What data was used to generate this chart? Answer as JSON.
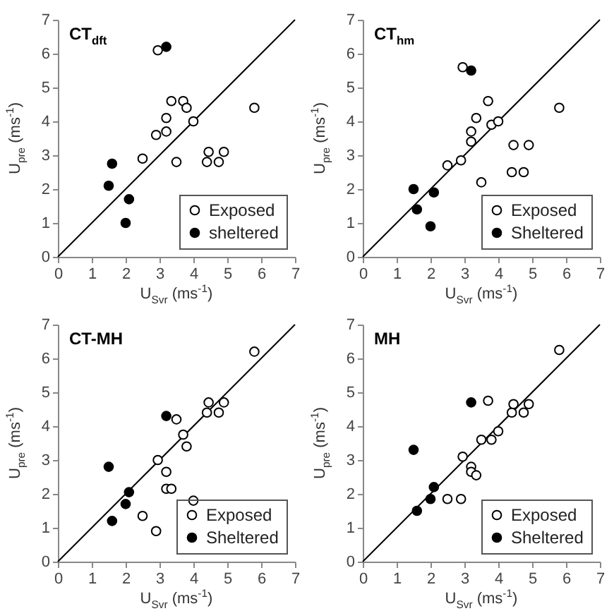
{
  "chart_data": [
    {
      "type": "scatter",
      "title": "CT$_{dft}$",
      "xlabel": "U$_{Svr}$ (ms$^{-1}$)",
      "ylabel": "U$_{pre}$ (ms$^{-1}$)",
      "xlim": [
        0,
        7
      ],
      "ylim": [
        0,
        7
      ],
      "xticks": [
        0,
        1,
        2,
        3,
        4,
        5,
        6,
        7
      ],
      "yticks": [
        0,
        1,
        2,
        3,
        4,
        5,
        6,
        7
      ],
      "marker": "circle",
      "legend": "bottom right",
      "series": [
        {
          "type": "line",
          "color": "#000000",
          "marker": "none",
          "x": [
            0,
            7
          ],
          "values": [
            0,
            7
          ]
        },
        {
          "name": "Exposed",
          "color": "#ffffff",
          "x": [
            2.5,
            2.9,
            2.95,
            3.2,
            3.2,
            3.35,
            3.5,
            3.7,
            3.8,
            4.0,
            4.4,
            4.45,
            4.75,
            4.9,
            5.8
          ],
          "values": [
            2.9,
            3.6,
            6.1,
            3.7,
            4.1,
            4.6,
            2.8,
            4.6,
            4.4,
            4.0,
            2.8,
            3.1,
            2.8,
            3.1,
            4.4
          ]
        },
        {
          "name": "sheltered",
          "color": "#000000",
          "x": [
            1.5,
            1.6,
            2.0,
            2.1,
            3.2
          ],
          "values": [
            2.1,
            2.75,
            1.0,
            1.7,
            6.2
          ]
        }
      ]
    },
    {
      "type": "scatter",
      "title": "CT$_{hm}$",
      "xlabel": "U$_{Svr}$ (ms$^{-1}$)",
      "ylabel": "U$_{pre}$ (ms$^{-1}$)",
      "xlim": [
        0,
        7
      ],
      "ylim": [
        0,
        7
      ],
      "xticks": [
        0,
        1,
        2,
        3,
        4,
        5,
        6,
        7
      ],
      "yticks": [
        0,
        1,
        2,
        3,
        4,
        5,
        6,
        7
      ],
      "marker": "circle",
      "legend": "bottom right",
      "series": [
        {
          "type": "line",
          "color": "#000000",
          "marker": "none",
          "x": [
            0,
            7
          ],
          "values": [
            0,
            7
          ]
        },
        {
          "name": "Exposed",
          "color": "#ffffff",
          "x": [
            2.5,
            2.9,
            2.95,
            3.2,
            3.2,
            3.35,
            3.5,
            3.7,
            3.8,
            4.0,
            4.4,
            4.45,
            4.75,
            4.9,
            5.8
          ],
          "values": [
            2.7,
            2.85,
            5.6,
            3.4,
            3.7,
            4.1,
            2.2,
            4.6,
            3.9,
            4.0,
            2.5,
            3.3,
            2.5,
            3.3,
            4.4
          ]
        },
        {
          "name": "Sheltered",
          "color": "#000000",
          "x": [
            1.5,
            1.6,
            2.0,
            2.1,
            3.2
          ],
          "values": [
            2.0,
            1.4,
            0.9,
            1.9,
            5.5
          ]
        }
      ]
    },
    {
      "type": "scatter",
      "title": "CT-MH",
      "xlabel": "U$_{Svr}$ (ms$^{-1}$)",
      "ylabel": "U$_{pre}$ (ms$^{-1}$)",
      "xlim": [
        0,
        7
      ],
      "ylim": [
        0,
        7
      ],
      "xticks": [
        0,
        1,
        2,
        3,
        4,
        5,
        6,
        7
      ],
      "yticks": [
        0,
        1,
        2,
        3,
        4,
        5,
        6,
        7
      ],
      "marker": "circle",
      "legend": "bottom right",
      "series": [
        {
          "type": "line",
          "color": "#000000",
          "marker": "none",
          "x": [
            0,
            7
          ],
          "values": [
            0,
            7
          ]
        },
        {
          "name": "Exposed",
          "color": "#ffffff",
          "x": [
            2.5,
            2.9,
            2.95,
            3.2,
            3.2,
            3.35,
            3.5,
            3.7,
            3.8,
            4.0,
            4.4,
            4.45,
            4.75,
            4.9,
            5.8
          ],
          "values": [
            1.35,
            0.9,
            3.0,
            2.65,
            2.15,
            2.15,
            4.2,
            3.75,
            3.4,
            1.8,
            4.4,
            4.7,
            4.4,
            4.7,
            6.2
          ]
        },
        {
          "name": "Sheltered",
          "color": "#000000",
          "x": [
            1.5,
            1.6,
            2.0,
            2.1,
            3.2
          ],
          "values": [
            2.8,
            1.2,
            1.7,
            2.05,
            4.3
          ]
        }
      ]
    },
    {
      "type": "scatter",
      "title": "MH",
      "xlabel": "U$_{Svr}$ (ms$^{-1}$)",
      "ylabel": "U$_{pre}$ (ms$^{-1}$)",
      "xlim": [
        0,
        7
      ],
      "ylim": [
        0,
        7
      ],
      "xticks": [
        0,
        1,
        2,
        3,
        4,
        5,
        6,
        7
      ],
      "yticks": [
        0,
        1,
        2,
        3,
        4,
        5,
        6,
        7
      ],
      "marker": "circle",
      "legend": "bottom right",
      "series": [
        {
          "type": "line",
          "color": "#000000",
          "marker": "none",
          "x": [
            0,
            7
          ],
          "values": [
            0,
            7
          ]
        },
        {
          "name": "Exposed",
          "color": "#ffffff",
          "x": [
            2.5,
            2.9,
            2.95,
            3.2,
            3.2,
            3.35,
            3.5,
            3.7,
            3.8,
            4.0,
            4.4,
            4.45,
            4.75,
            4.9,
            5.8
          ],
          "values": [
            1.85,
            1.85,
            3.1,
            2.8,
            2.65,
            2.55,
            3.6,
            4.75,
            3.6,
            3.85,
            4.4,
            4.65,
            4.4,
            4.65,
            6.25
          ]
        },
        {
          "name": "Sheltered",
          "color": "#000000",
          "x": [
            1.5,
            1.6,
            2.0,
            2.1,
            3.2
          ],
          "values": [
            3.3,
            1.5,
            1.85,
            2.2,
            4.7
          ]
        }
      ]
    }
  ]
}
